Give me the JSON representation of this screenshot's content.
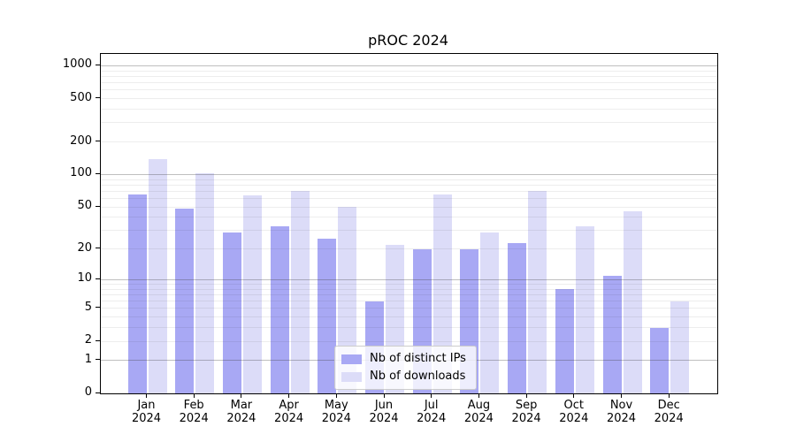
{
  "chart_data": {
    "type": "bar",
    "title": "pROC 2024",
    "categories": [
      "Jan",
      "Feb",
      "Mar",
      "Apr",
      "May",
      "Jun",
      "Jul",
      "Aug",
      "Sep",
      "Oct",
      "Nov",
      "Dec"
    ],
    "category_year": "2024",
    "series": [
      {
        "name": "Nb of distinct IPs",
        "color": "#a8a8f4",
        "values": [
          66,
          48,
          29,
          33,
          25,
          6,
          20,
          20,
          23,
          8,
          11,
          3
        ]
      },
      {
        "name": "Nb of downloads",
        "color": "#dcdcf8",
        "values": [
          140,
          103,
          64,
          71,
          50,
          22,
          66,
          29,
          71,
          33,
          46,
          6
        ]
      }
    ],
    "y_scale": "log1p",
    "ylim": [
      0,
      1286
    ],
    "y_ticks": [
      0,
      1,
      2,
      5,
      10,
      20,
      50,
      100,
      200,
      500,
      1000
    ],
    "y_major_gridlines": [
      1,
      10,
      100,
      1000
    ],
    "y_minor_gridlines": [
      2,
      3,
      4,
      5,
      6,
      7,
      8,
      9,
      20,
      30,
      40,
      50,
      60,
      70,
      80,
      90,
      200,
      300,
      400,
      500,
      600,
      700,
      800,
      900
    ],
    "grid": true,
    "legend_position": "lower center",
    "colors": {
      "background": "#ffffff",
      "axis": "#000000",
      "major_grid": "#b4b4b4",
      "minor_grid": "#ededed",
      "legend_border": "#cccccc"
    }
  }
}
